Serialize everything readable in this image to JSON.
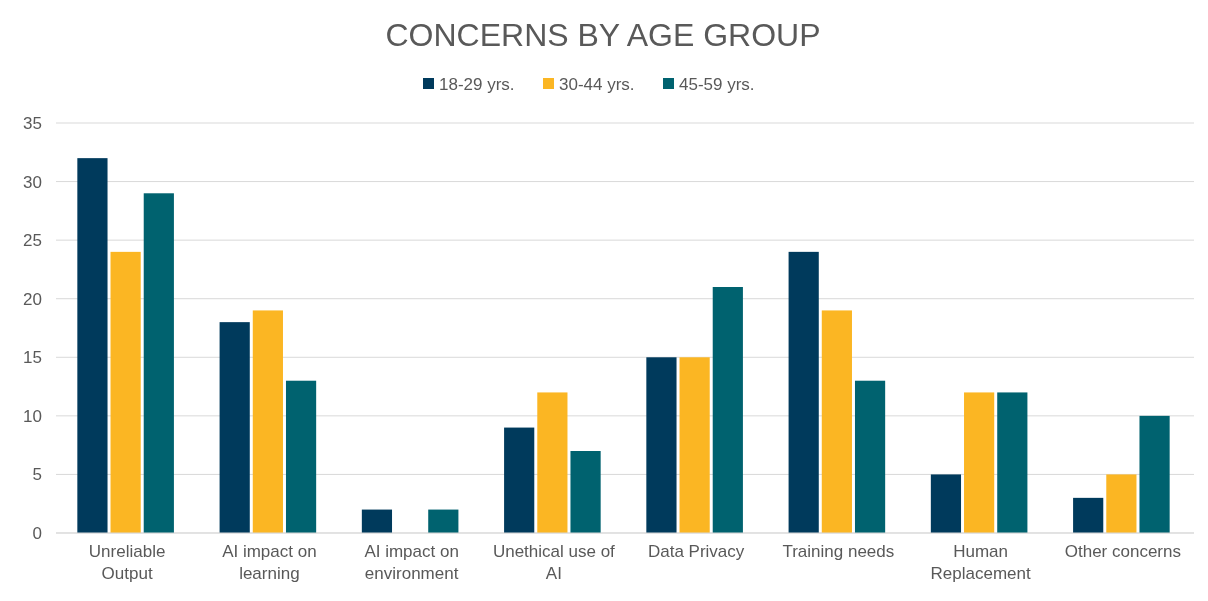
{
  "chart_data": {
    "type": "bar",
    "title": "CONCERNS BY AGE GROUP",
    "categories": [
      "Unreliable Output",
      "AI impact on learning",
      "AI impact on environment",
      "Unethical use of AI",
      "Data Privacy",
      "Training needs",
      "Human Replacement",
      "Other concerns"
    ],
    "series": [
      {
        "name": "18-29 yrs.",
        "color": "#003a5c",
        "values": [
          32,
          18,
          2,
          9,
          15,
          24,
          5,
          3
        ]
      },
      {
        "name": "30-44 yrs.",
        "color": "#fbb623",
        "values": [
          24,
          19,
          0,
          12,
          15,
          19,
          12,
          5
        ]
      },
      {
        "name": "45-59 yrs.",
        "color": "#00626f",
        "values": [
          29,
          13,
          2,
          7,
          21,
          13,
          12,
          10
        ]
      }
    ],
    "ylim": [
      0,
      35
    ],
    "yticks": [
      0,
      5,
      10,
      15,
      20,
      25,
      30,
      35
    ],
    "grid": "y",
    "legend": "top"
  }
}
